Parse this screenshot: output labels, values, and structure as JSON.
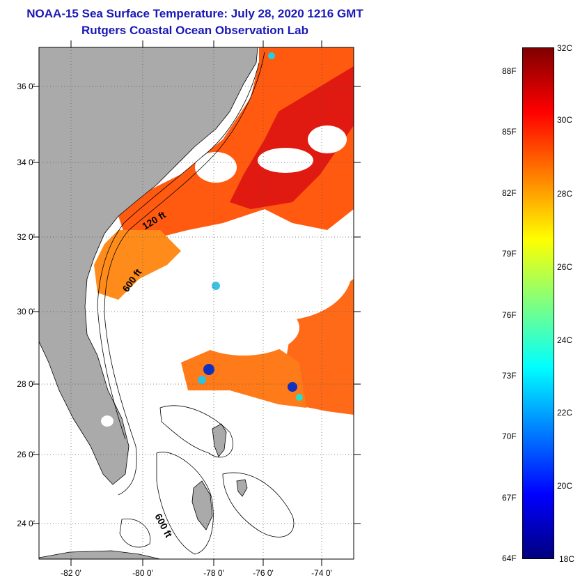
{
  "title": {
    "line1": "NOAA-15 Sea Surface Temperature:  July 28, 2020 1216 GMT",
    "line2": "Rutgers Coastal Ocean Observation Lab"
  },
  "map": {
    "lat_labels": [
      "36 0'",
      "34 0'",
      "32 0'",
      "30 0'",
      "28 0'",
      "26 0'",
      "24 0'"
    ],
    "lon_labels": [
      "-82 0'",
      "-80 0'",
      "-78 0'",
      "-76 0'",
      "-74 0'"
    ],
    "contour_labels": {
      "shelf": "120 ft",
      "slope": "600 ft",
      "bahamas": "600 ft"
    },
    "colors": {
      "land": "#aaaaaa",
      "cloud": "#ffffff",
      "frame": "#000000"
    }
  },
  "colorbar": {
    "celsius_labels": [
      "32C",
      "30C",
      "28C",
      "26C",
      "24C",
      "22C",
      "20C",
      "18C"
    ],
    "fahrenheit_labels": [
      "88F",
      "85F",
      "82F",
      "79F",
      "76F",
      "73F",
      "70F",
      "67F",
      "64F"
    ],
    "range_c": [
      18,
      32
    ],
    "colors": [
      "#00007f",
      "#0000ff",
      "#007fff",
      "#00ffff",
      "#7fff7f",
      "#ffff00",
      "#ff7f00",
      "#ff0000",
      "#7f0000"
    ]
  }
}
